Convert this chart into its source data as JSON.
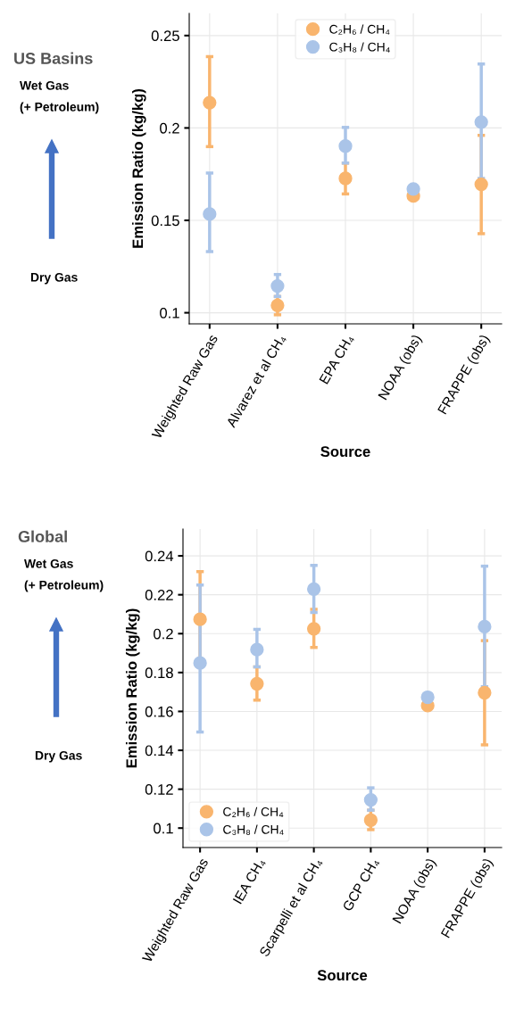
{
  "chart_data": [
    {
      "type": "scatter",
      "title": "US Basins",
      "annotations": [
        "Wet Gas",
        "(+ Petroleum)",
        "Dry Gas"
      ],
      "xlabel": "Source",
      "ylabel": "Emission Ratio (kg/kg)",
      "categories": [
        "Weighted Raw Gas",
        "Alvarez et al CH₄",
        "EPA CH₄",
        "NOAA (obs)",
        "FRAPPE (obs)"
      ],
      "series": [
        {
          "name": "C₂H₆ / CH₄",
          "color": "#f9b56e",
          "values": [
            0.2137,
            0.104,
            0.1727,
            0.1632,
            0.1695
          ],
          "errors": [
            [
              0.1899,
              0.2386
            ],
            [
              0.0989,
              0.1088
            ],
            [
              0.1643,
              0.181
            ],
            null,
            [
              0.1428,
              0.196
            ]
          ]
        },
        {
          "name": "C₃H₈ / CH₄",
          "color": "#aac4e8",
          "values": [
            0.1534,
            0.1145,
            0.1902,
            0.167,
            0.2032
          ],
          "errors": [
            [
              0.1331,
              0.1756
            ],
            [
              0.1088,
              0.1207
            ],
            [
              0.181,
              0.2003
            ],
            null,
            [
              0.1727,
              0.2346
            ]
          ]
        }
      ],
      "ylim": [
        0.094,
        0.262
      ],
      "yticks": [
        0.1,
        0.15,
        0.2,
        0.25
      ],
      "grid": true,
      "legend": "top center",
      "marker": "circle"
    },
    {
      "type": "scatter",
      "title": "Global",
      "annotations": [
        "Wet Gas",
        "(+ Petroleum)",
        "Dry Gas"
      ],
      "xlabel": "Source",
      "ylabel": "Emission Ratio (kg/kg)",
      "categories": [
        "Weighted Raw Gas",
        "IEA CH₄",
        "Scarpelli et al CH₄",
        "GCP CH₄",
        "NOAA (obs)",
        "FRAPPE (obs)"
      ],
      "series": [
        {
          "name": "C₂H₆ / CH₄",
          "color": "#f9b56e",
          "values": [
            0.2074,
            0.1742,
            0.2025,
            0.1041,
            0.163,
            0.1696
          ],
          "errors": [
            [
              0.183,
              0.2319
            ],
            [
              0.1658,
              0.1829
            ],
            [
              0.1929,
              0.2125
            ],
            [
              0.0992,
              0.1092
            ],
            null,
            [
              0.1428,
              0.1964
            ]
          ]
        },
        {
          "name": "C₃H₈ / CH₄",
          "color": "#aac4e8",
          "values": [
            0.1849,
            0.1918,
            0.2229,
            0.1145,
            0.1673,
            0.2036
          ],
          "errors": [
            [
              0.1494,
              0.225
            ],
            [
              0.1829,
              0.2022
            ],
            [
              0.2109,
              0.2351
            ],
            [
              0.1092,
              0.1207
            ],
            null,
            [
              0.1727,
              0.2347
            ]
          ]
        }
      ],
      "ylim": [
        0.09,
        0.2538
      ],
      "yticks": [
        0.1,
        0.12,
        0.14,
        0.16,
        0.18,
        0.2,
        0.22,
        0.24
      ],
      "grid": true,
      "legend": "bottom left",
      "marker": "circle"
    }
  ]
}
